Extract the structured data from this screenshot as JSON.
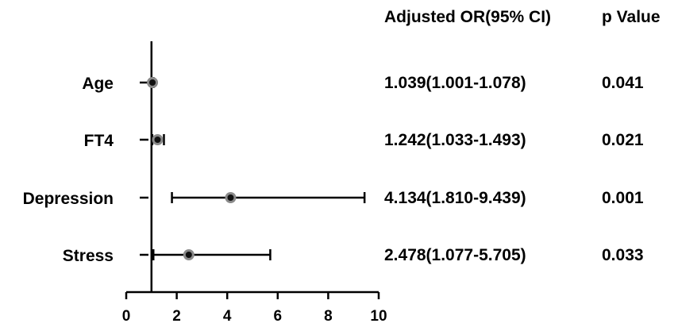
{
  "header": {
    "or_label": "Adjusted OR(95% CI)",
    "p_label": "p Value"
  },
  "chart_data": {
    "type": "forest",
    "title": "",
    "xlabel": "",
    "ylabel": "",
    "xlim": [
      0,
      10
    ],
    "xticks": [
      "0",
      "2",
      "4",
      "6",
      "8",
      "10"
    ],
    "reference_line": 1,
    "grid": false,
    "rows": [
      {
        "label": "Age",
        "or": 1.039,
        "lower": 1.001,
        "upper": 1.078,
        "or_text": "1.039(1.001-1.078)",
        "p_text": "0.041"
      },
      {
        "label": "FT4",
        "or": 1.242,
        "lower": 1.033,
        "upper": 1.493,
        "or_text": "1.242(1.033-1.493)",
        "p_text": "0.021"
      },
      {
        "label": "Depression",
        "or": 4.134,
        "lower": 1.81,
        "upper": 9.439,
        "or_text": "4.134(1.810-9.439)",
        "p_text": "0.001"
      },
      {
        "label": "Stress",
        "or": 2.478,
        "lower": 1.077,
        "upper": 5.705,
        "or_text": "2.478(1.077-5.705)",
        "p_text": "0.033"
      }
    ]
  }
}
